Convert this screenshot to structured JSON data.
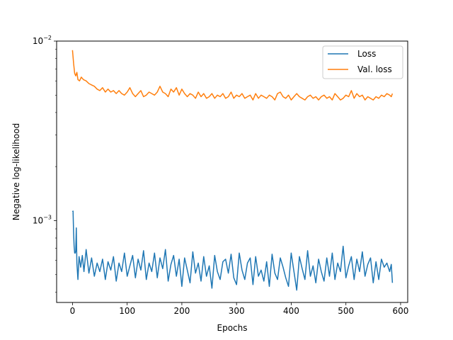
{
  "chart_data": {
    "type": "line",
    "title": "",
    "xlabel": "Epochs",
    "ylabel": "Negative log-likelihood",
    "yscale": "log",
    "xlim": [
      -29,
      613
    ],
    "ylim": [
      0.00035,
      0.01
    ],
    "xticks": [
      0,
      100,
      200,
      300,
      400,
      500,
      600
    ],
    "xtick_labels": [
      "0",
      "100",
      "200",
      "300",
      "400",
      "500",
      "600"
    ],
    "yticks": [
      0.001,
      0.01
    ],
    "ytick_labels": [
      {
        "base": "10",
        "exp": "−3",
        "value": 0.001
      },
      {
        "base": "10",
        "exp": "−2",
        "value": 0.01
      }
    ],
    "grid": false,
    "legend_position": "top-right",
    "series": [
      {
        "name": "Loss",
        "color": "#1f77b4",
        "x": [
          0,
          1,
          2,
          3,
          4,
          5,
          6,
          7,
          8,
          10,
          12,
          15,
          18,
          21,
          25,
          30,
          35,
          40,
          45,
          50,
          55,
          60,
          65,
          70,
          75,
          80,
          85,
          90,
          95,
          100,
          105,
          110,
          115,
          120,
          125,
          130,
          135,
          140,
          145,
          150,
          155,
          160,
          165,
          170,
          175,
          180,
          185,
          190,
          195,
          200,
          205,
          210,
          215,
          220,
          225,
          230,
          235,
          240,
          245,
          250,
          255,
          260,
          265,
          270,
          275,
          280,
          285,
          290,
          295,
          300,
          305,
          310,
          315,
          320,
          325,
          330,
          335,
          340,
          345,
          350,
          355,
          360,
          365,
          370,
          375,
          380,
          385,
          390,
          395,
          400,
          405,
          410,
          415,
          420,
          425,
          430,
          435,
          440,
          445,
          450,
          455,
          460,
          465,
          470,
          475,
          480,
          485,
          490,
          495,
          500,
          505,
          510,
          515,
          520,
          525,
          530,
          535,
          540,
          545,
          550,
          555,
          560,
          565,
          570,
          575,
          580,
          583,
          585
        ],
        "values": [
          0.00112,
          0.00113,
          0.00085,
          0.00072,
          0.00066,
          0.00066,
          0.00068,
          0.00091,
          0.00058,
          0.00047,
          0.00063,
          0.00055,
          0.00064,
          0.00052,
          0.00069,
          0.00051,
          0.00062,
          0.00049,
          0.00058,
          0.00052,
          0.00061,
          0.00047,
          0.00059,
          0.00053,
          0.00063,
          0.00046,
          0.00058,
          0.00052,
          0.00066,
          0.00049,
          0.00056,
          0.00064,
          0.00048,
          0.00061,
          0.00053,
          0.00068,
          0.00047,
          0.00058,
          0.00052,
          0.00066,
          0.00048,
          0.00062,
          0.00054,
          0.00069,
          0.00046,
          0.00057,
          0.00064,
          0.00049,
          0.00061,
          0.00043,
          0.00062,
          0.00053,
          0.00045,
          0.00067,
          0.00051,
          0.00058,
          0.00046,
          0.00063,
          0.00049,
          0.00056,
          0.00042,
          0.00064,
          0.00052,
          0.00047,
          0.00059,
          0.00061,
          0.00051,
          0.00065,
          0.00048,
          0.00044,
          0.00066,
          0.00053,
          0.00047,
          0.00058,
          0.00062,
          0.00044,
          0.00063,
          0.00049,
          0.00053,
          0.00046,
          0.00059,
          0.00043,
          0.00065,
          0.00051,
          0.00047,
          0.00062,
          0.00055,
          0.00048,
          0.00043,
          0.00066,
          0.00052,
          0.00041,
          0.00063,
          0.00054,
          0.00047,
          0.00068,
          0.00049,
          0.00056,
          0.00045,
          0.00061,
          0.00052,
          0.00046,
          0.00062,
          0.00049,
          0.00066,
          0.00047,
          0.00058,
          0.00052,
          0.00072,
          0.00048,
          0.00056,
          0.00063,
          0.00047,
          0.00061,
          0.00052,
          0.00067,
          0.00049,
          0.00057,
          0.00062,
          0.00045,
          0.00059,
          0.00047,
          0.00061,
          0.00055,
          0.00058,
          0.00052,
          0.00057,
          0.00045
        ]
      },
      {
        "name": "Val. loss",
        "color": "#ff7f0e",
        "x": [
          0,
          2,
          4,
          6,
          8,
          10,
          13,
          16,
          20,
          25,
          30,
          35,
          40,
          45,
          50,
          55,
          60,
          65,
          70,
          75,
          80,
          85,
          90,
          95,
          100,
          105,
          110,
          115,
          120,
          125,
          130,
          135,
          140,
          145,
          150,
          155,
          160,
          165,
          170,
          175,
          180,
          185,
          190,
          195,
          200,
          205,
          210,
          215,
          220,
          225,
          230,
          235,
          240,
          245,
          250,
          255,
          260,
          265,
          270,
          275,
          280,
          285,
          290,
          295,
          300,
          305,
          310,
          315,
          320,
          325,
          330,
          335,
          340,
          345,
          350,
          355,
          360,
          365,
          370,
          375,
          380,
          385,
          390,
          395,
          400,
          405,
          410,
          415,
          420,
          425,
          430,
          435,
          440,
          445,
          450,
          455,
          460,
          465,
          470,
          475,
          480,
          485,
          490,
          495,
          500,
          505,
          510,
          515,
          520,
          525,
          530,
          535,
          540,
          545,
          550,
          555,
          560,
          565,
          570,
          575,
          580,
          583,
          585
        ],
        "values": [
          0.0089,
          0.0075,
          0.0066,
          0.0064,
          0.0067,
          0.0061,
          0.006,
          0.0063,
          0.0061,
          0.006,
          0.0058,
          0.0057,
          0.0056,
          0.0054,
          0.0053,
          0.0055,
          0.0052,
          0.0054,
          0.0052,
          0.0053,
          0.0051,
          0.0053,
          0.0051,
          0.005,
          0.0052,
          0.0055,
          0.0051,
          0.0049,
          0.0051,
          0.0053,
          0.0049,
          0.005,
          0.0052,
          0.0051,
          0.005,
          0.0052,
          0.0056,
          0.0052,
          0.0051,
          0.0049,
          0.0054,
          0.0052,
          0.0055,
          0.005,
          0.0054,
          0.0051,
          0.0049,
          0.0051,
          0.005,
          0.0048,
          0.0052,
          0.0049,
          0.0051,
          0.0048,
          0.0049,
          0.0051,
          0.0048,
          0.005,
          0.0049,
          0.0051,
          0.0048,
          0.0049,
          0.0052,
          0.0048,
          0.005,
          0.0049,
          0.0051,
          0.0048,
          0.0049,
          0.005,
          0.0047,
          0.0051,
          0.0048,
          0.005,
          0.0049,
          0.0048,
          0.005,
          0.0049,
          0.0047,
          0.0051,
          0.0052,
          0.0049,
          0.0048,
          0.005,
          0.0047,
          0.0049,
          0.0051,
          0.0049,
          0.0048,
          0.0047,
          0.0049,
          0.005,
          0.0048,
          0.0049,
          0.0047,
          0.0049,
          0.005,
          0.0048,
          0.0049,
          0.0047,
          0.0051,
          0.0049,
          0.0047,
          0.0048,
          0.005,
          0.0049,
          0.0053,
          0.0048,
          0.0051,
          0.0049,
          0.005,
          0.0047,
          0.0049,
          0.0048,
          0.0047,
          0.0049,
          0.0048,
          0.005,
          0.0049,
          0.0051,
          0.005,
          0.0049,
          0.0051
        ]
      }
    ]
  }
}
